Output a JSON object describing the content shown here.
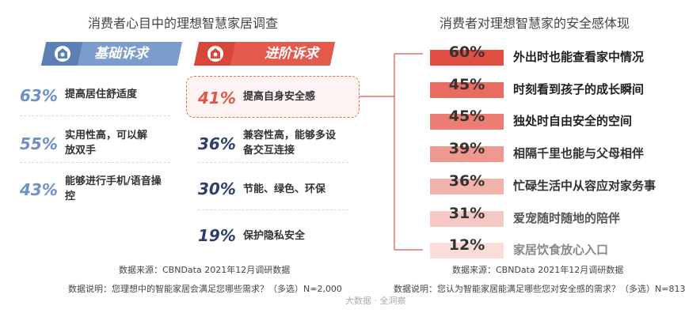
{
  "left_title": "消费者心目中的理想智慧家居调查",
  "right_title": "消费者对理想智慧家的安全感体现",
  "colors": {
    "basic": "#7b9ccd",
    "advanced": "#e45a4c",
    "pct_basic": "#6f8fc6",
    "pct_adv": "#e0564a",
    "pct_dark": "#2f3f6b"
  },
  "chart_data": [
    {
      "type": "table",
      "title": "消费者心目中的理想智慧家居调查",
      "groups": [
        {
          "name": "基础诉求",
          "items": [
            {
              "value": 63,
              "label_pct": "63%",
              "text": "提高居住舒适度"
            },
            {
              "value": 55,
              "label_pct": "55%",
              "text": "实用性高，可以解放双手"
            },
            {
              "value": 43,
              "label_pct": "43%",
              "text": "能够进行手机/语音操控"
            }
          ]
        },
        {
          "name": "进阶诉求",
          "items": [
            {
              "value": 41,
              "label_pct": "41%",
              "text": "提高自身安全感",
              "highlight": true
            },
            {
              "value": 36,
              "label_pct": "36%",
              "text": "兼容性高，能够多设备交互连接"
            },
            {
              "value": 30,
              "label_pct": "30%",
              "text": "节能、绿色、环保"
            },
            {
              "value": 19,
              "label_pct": "19%",
              "text": "保护隐私安全"
            }
          ]
        }
      ],
      "source": "数据来源：CBNData 2021年12月调研数据",
      "note": "数据说明：您理想中的智能家居会满足您哪些需求？（多选）N=2,000"
    },
    {
      "type": "bar",
      "title": "消费者对理想智慧家的安全感体现",
      "categories": [
        "外出时也能查看家中情况",
        "时刻看到孩子的成长瞬间",
        "独处时自由安全的空间",
        "相隔千里也能与父母相伴",
        "忙碌生活中从容应对家务事",
        "爱宠随时随地的陪伴",
        "家居饮食放心入口"
      ],
      "values": [
        60,
        45,
        45,
        39,
        36,
        31,
        12
      ],
      "labels": [
        "60%",
        "45%",
        "45%",
        "39%",
        "36%",
        "31%",
        "12%"
      ],
      "bar_colors": [
        "#e14f43",
        "#e86c62",
        "#eb7d74",
        "#ef9890",
        "#f3b3ad",
        "#f6c8c3",
        "#fadcd9"
      ],
      "text_colors": [
        "#222222",
        "#222222",
        "#222222",
        "#333333",
        "#333333",
        "#555555",
        "#888888"
      ],
      "source": "数据来源：CBNData 2021年12月调研数据",
      "note": "数据说明：您认为智能家居能满足哪些您对安全感的需求？（多选）N=813"
    }
  ],
  "watermark": "大数据 · 全洞察"
}
